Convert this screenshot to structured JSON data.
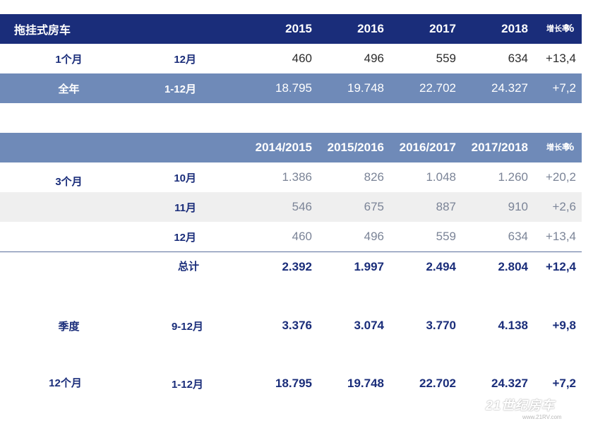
{
  "table1": {
    "title": "拖挂式房车",
    "years": [
      "2015",
      "2016",
      "2017",
      "2018"
    ],
    "growth_label": "增长率",
    "growth_pct": "%",
    "rows": [
      {
        "label": "1个月",
        "period": "12月",
        "values": [
          "460",
          "496",
          "559",
          "634"
        ],
        "growth": "+13,4"
      },
      {
        "label": "全年",
        "period": "1-12月",
        "values": [
          "18.795",
          "19.748",
          "22.702",
          "24.327"
        ],
        "growth": "+7,2"
      }
    ]
  },
  "table2": {
    "seasons": [
      "2014/2015",
      "2015/2016",
      "2016/2017",
      "2017/2018"
    ],
    "growth_label": "增长率",
    "growth_pct": "%",
    "group_label": "3个月",
    "rows": [
      {
        "period": "10月",
        "values": [
          "1.386",
          "826",
          "1.048",
          "1.260"
        ],
        "growth": "+20,2"
      },
      {
        "period": "11月",
        "values": [
          "546",
          "675",
          "887",
          "910"
        ],
        "growth": "+2,6"
      },
      {
        "period": "12月",
        "values": [
          "460",
          "496",
          "559",
          "634"
        ],
        "growth": "+13,4"
      }
    ],
    "total": {
      "period": "总计",
      "values": [
        "2.392",
        "1.997",
        "2.494",
        "2.804"
      ],
      "growth": "+12,4"
    },
    "quarter": {
      "label": "季度",
      "period": "9-12月",
      "values": [
        "3.376",
        "3.074",
        "3.770",
        "4.138"
      ],
      "growth": "+9,8"
    },
    "twelve": {
      "label": "12个月",
      "period": "1-12月",
      "values": [
        "18.795",
        "19.748",
        "22.702",
        "24.327"
      ],
      "growth": "+7,2"
    }
  },
  "watermark": {
    "main": "21世纪房车",
    "sub": "www.21RV.com"
  },
  "colors": {
    "navy": "#1a2d7a",
    "header_blue": "#6f8ab8",
    "row_gray": "#efefef"
  }
}
